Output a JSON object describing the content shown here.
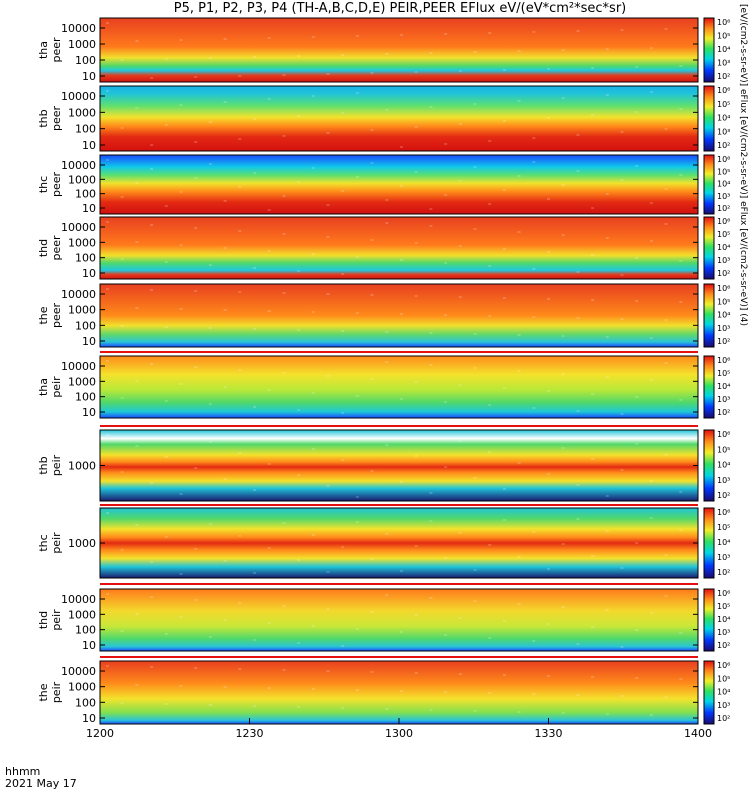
{
  "title": "P5, P1, P2, P3, P4 (TH-A,B,C,D,E) PEIR,PEER EFlux eV/(eV*cm²*sec*sr)",
  "side_label": "[eV/(cm2-s-sr-eV)] eFlux [eV/(cm2-s-sr-eV)] eFlux [eV/(cm2-s-sr-eV)] (4)",
  "footer": {
    "line1": "hhmm",
    "line2": "2021 May 17"
  },
  "colors": {
    "plot_border": "#000000",
    "background": "#ffffff"
  },
  "chart_data": {
    "type": "heatmap",
    "x_axis": {
      "ticks": [
        "1200",
        "1230",
        "1300",
        "1330",
        "1400"
      ],
      "range": [
        "12:00",
        "14:00"
      ]
    },
    "colorbar_ticks": [
      "10²",
      "10³",
      "10⁴",
      "10⁵",
      "10⁶"
    ],
    "panels": [
      {
        "label1": "tha",
        "label2": "peer",
        "yticks": [
          "10000",
          "1000",
          "100",
          "10"
        ]
      },
      {
        "label1": "thb",
        "label2": "peer",
        "yticks": [
          "10000",
          "1000",
          "100",
          "10"
        ]
      },
      {
        "label1": "thc",
        "label2": "peer",
        "yticks": [
          "10000",
          "1000",
          "100",
          "10"
        ]
      },
      {
        "label1": "thd",
        "label2": "peer",
        "yticks": [
          "10000",
          "1000",
          "100",
          "10"
        ]
      },
      {
        "label1": "the",
        "label2": "peer",
        "yticks": [
          "10000",
          "1000",
          "100",
          "10"
        ]
      },
      {
        "label1": "tha",
        "label2": "peir",
        "yticks": [
          "10000",
          "1000",
          "100",
          "10"
        ]
      },
      {
        "label1": "thb",
        "label2": "peir",
        "yticks": [
          "1000"
        ]
      },
      {
        "label1": "thc",
        "label2": "peir",
        "yticks": [
          "1000"
        ]
      },
      {
        "label1": "thd",
        "label2": "peir",
        "yticks": [
          "10000",
          "1000",
          "100",
          "10"
        ]
      },
      {
        "label1": "the",
        "label2": "peir",
        "yticks": [
          "10000",
          "1000",
          "100",
          "10"
        ]
      }
    ]
  }
}
